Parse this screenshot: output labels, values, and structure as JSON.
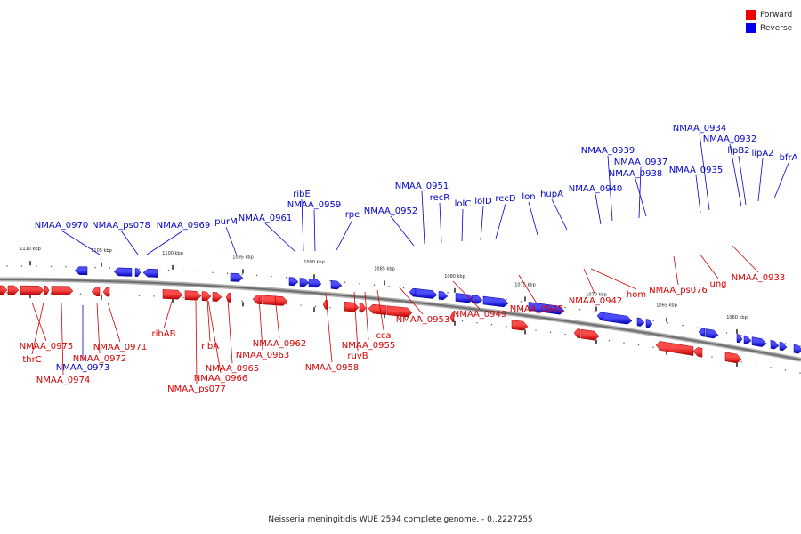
{
  "legend": {
    "forward": {
      "label": "Forward",
      "color": "#ee0000"
    },
    "reverse": {
      "label": "Reverse",
      "color": "#0000ee"
    }
  },
  "caption": "Neisseria meningitidis WUE 2594 complete genome. - 0..2227255",
  "tick_labels": [
    "1110 kbp",
    "1105 kbp",
    "1100 kbp",
    "1095 kbp",
    "1090 kbp",
    "1085 kbp",
    "1080 kbp",
    "1075 kbp",
    "1070 kbp",
    "1065 kbp",
    "1060 kbp"
  ],
  "reverse_genes": [
    "NMAA_0970",
    "NMAA_ps078",
    "NMAA_0969",
    "purM",
    "NMAA_0961",
    "ribE",
    "NMAA_0959",
    "rpe",
    "NMAA_0952",
    "NMAA_0951",
    "recR",
    "lolC",
    "lolD",
    "recD",
    "lon",
    "hupA",
    "NMAA_0940",
    "NMAA_0939",
    "NMAA_0937",
    "NMAA_0938",
    "NMAA_0935",
    "NMAA_0934",
    "NMAA_0932",
    "lipB2",
    "lipA2",
    "bfrA",
    "NMAA_0973"
  ],
  "forward_genes": [
    "NMAA_0975",
    "thrC",
    "NMAA_0974",
    "NMAA_0972",
    "NMAA_0971",
    "ribAB",
    "NMAA_ps077",
    "NMAA_0966",
    "ribA",
    "NMAA_0965",
    "NMAA_0963",
    "NMAA_0962",
    "NMAA_0958",
    "ruvB",
    "NMAA_0955",
    "cca",
    "NMAA_0953",
    "NMAA_0949",
    "NMAA_0945",
    "NMAA_0942",
    "hom",
    "NMAA_ps076",
    "ung",
    "NMAA_0933"
  ]
}
